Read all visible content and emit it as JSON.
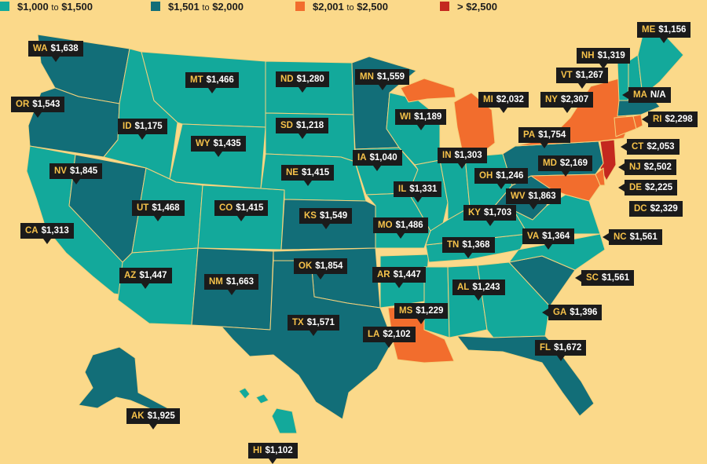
{
  "legend": [
    {
      "name": "legend-item-1000-1500",
      "text_a": "$1,000",
      "text_sep": "to",
      "text_b": "$1,500",
      "color": "#13a99b"
    },
    {
      "name": "legend-item-1501-2000",
      "text_a": "$1,501",
      "text_sep": "to",
      "text_b": "$2,000",
      "color": "#126e78"
    },
    {
      "name": "legend-item-2001-2500",
      "text_a": "$2,001",
      "text_sep": "to",
      "text_b": "$2,500",
      "color": "#f26d2d"
    },
    {
      "name": "legend-item-over-2500",
      "text_a": "> $2,500",
      "text_sep": "",
      "text_b": "",
      "color": "#c4281f"
    }
  ],
  "colors": {
    "background": "#fbd98a",
    "tier1": "#13a99b",
    "tier2": "#126e78",
    "tier3": "#f26d2d",
    "tier4": "#c4281f",
    "label_bg": "#1b1b1b",
    "abbr": "#f6c24a"
  },
  "states": [
    {
      "abbr": "WA",
      "value": "$1,638"
    },
    {
      "abbr": "OR",
      "value": "$1,543"
    },
    {
      "abbr": "ID",
      "value": "$1,175"
    },
    {
      "abbr": "MT",
      "value": "$1,466"
    },
    {
      "abbr": "ND",
      "value": "$1,280"
    },
    {
      "abbr": "MN",
      "value": "$1,559"
    },
    {
      "abbr": "SD",
      "value": "$1,218"
    },
    {
      "abbr": "WY",
      "value": "$1,435"
    },
    {
      "abbr": "WI",
      "value": "$1,189"
    },
    {
      "abbr": "MI",
      "value": "$2,032"
    },
    {
      "abbr": "NV",
      "value": "$1,845"
    },
    {
      "abbr": "NE",
      "value": "$1,415"
    },
    {
      "abbr": "IA",
      "value": "$1,040"
    },
    {
      "abbr": "IN",
      "value": "$1,303"
    },
    {
      "abbr": "OH",
      "value": "$1,246"
    },
    {
      "abbr": "UT",
      "value": "$1,468"
    },
    {
      "abbr": "CO",
      "value": "$1,415"
    },
    {
      "abbr": "IL",
      "value": "$1,331"
    },
    {
      "abbr": "CA",
      "value": "$1,313"
    },
    {
      "abbr": "KS",
      "value": "$1,549"
    },
    {
      "abbr": "MO",
      "value": "$1,486"
    },
    {
      "abbr": "KY",
      "value": "$1,703"
    },
    {
      "abbr": "WV",
      "value": "$1,863"
    },
    {
      "abbr": "TN",
      "value": "$1,368"
    },
    {
      "abbr": "VA",
      "value": "$1,364"
    },
    {
      "abbr": "AZ",
      "value": "$1,447"
    },
    {
      "abbr": "NM",
      "value": "$1,663"
    },
    {
      "abbr": "OK",
      "value": "$1,854"
    },
    {
      "abbr": "AR",
      "value": "$1,447"
    },
    {
      "abbr": "AL",
      "value": "$1,243"
    },
    {
      "abbr": "MS",
      "value": "$1,229"
    },
    {
      "abbr": "TX",
      "value": "$1,571"
    },
    {
      "abbr": "GA",
      "value": "$1,396"
    },
    {
      "abbr": "LA",
      "value": "$2,102"
    },
    {
      "abbr": "FL",
      "value": "$1,672"
    },
    {
      "abbr": "AK",
      "value": "$1,925"
    },
    {
      "abbr": "HI",
      "value": "$1,102"
    },
    {
      "abbr": "ME",
      "value": "$1,156"
    },
    {
      "abbr": "NH",
      "value": "$1,319"
    },
    {
      "abbr": "VT",
      "value": "$1,267"
    },
    {
      "abbr": "NY",
      "value": "$2,307"
    },
    {
      "abbr": "MA",
      "value": "N/A"
    },
    {
      "abbr": "RI",
      "value": "$2,298"
    },
    {
      "abbr": "PA",
      "value": "$1,754"
    },
    {
      "abbr": "CT",
      "value": "$2,053"
    },
    {
      "abbr": "MD",
      "value": "$2,169"
    },
    {
      "abbr": "NJ",
      "value": "$2,502"
    },
    {
      "abbr": "DE",
      "value": "$2,225"
    },
    {
      "abbr": "DC",
      "value": "$2,329"
    },
    {
      "abbr": "NC",
      "value": "$1,561"
    },
    {
      "abbr": "SC",
      "value": "$1,561"
    }
  ]
}
